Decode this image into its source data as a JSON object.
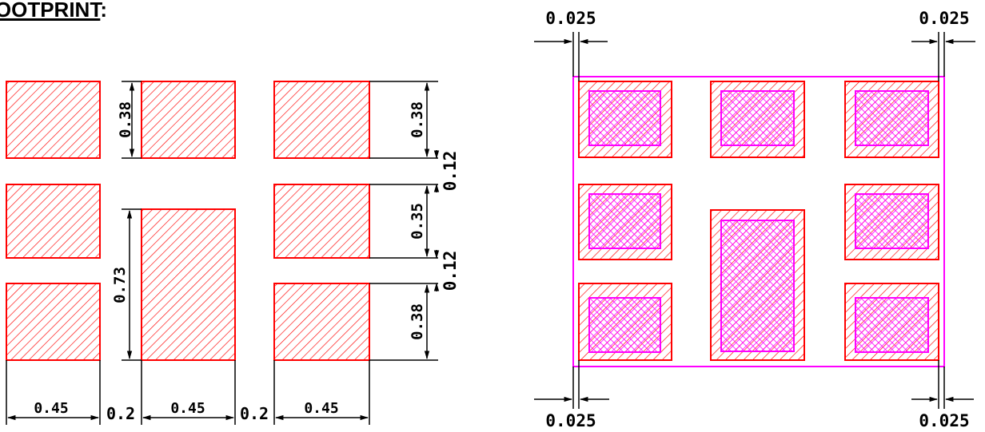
{
  "title": "FOOTPRINT",
  "title_colon": ":",
  "colors": {
    "pad": "#ff0000",
    "stencil": "#ff00ff",
    "line": "#000000"
  },
  "left_diagram": {
    "dims": {
      "pad_height_top": "0.38",
      "center_pad_height": "0.73",
      "right_pad_height_top": "0.38",
      "right_pad_height_mid": "0.35",
      "right_pad_height_bot": "0.38",
      "gap_top": "0.12",
      "gap_bottom": "0.12",
      "width_1": "0.45",
      "space_1": "0.2",
      "width_2": "0.45",
      "space_2": "0.2",
      "width_3": "0.45"
    }
  },
  "right_diagram": {
    "dims": {
      "top_left": "0.025",
      "top_right": "0.025",
      "bottom_left": "0.025",
      "bottom_right": "0.025"
    }
  }
}
